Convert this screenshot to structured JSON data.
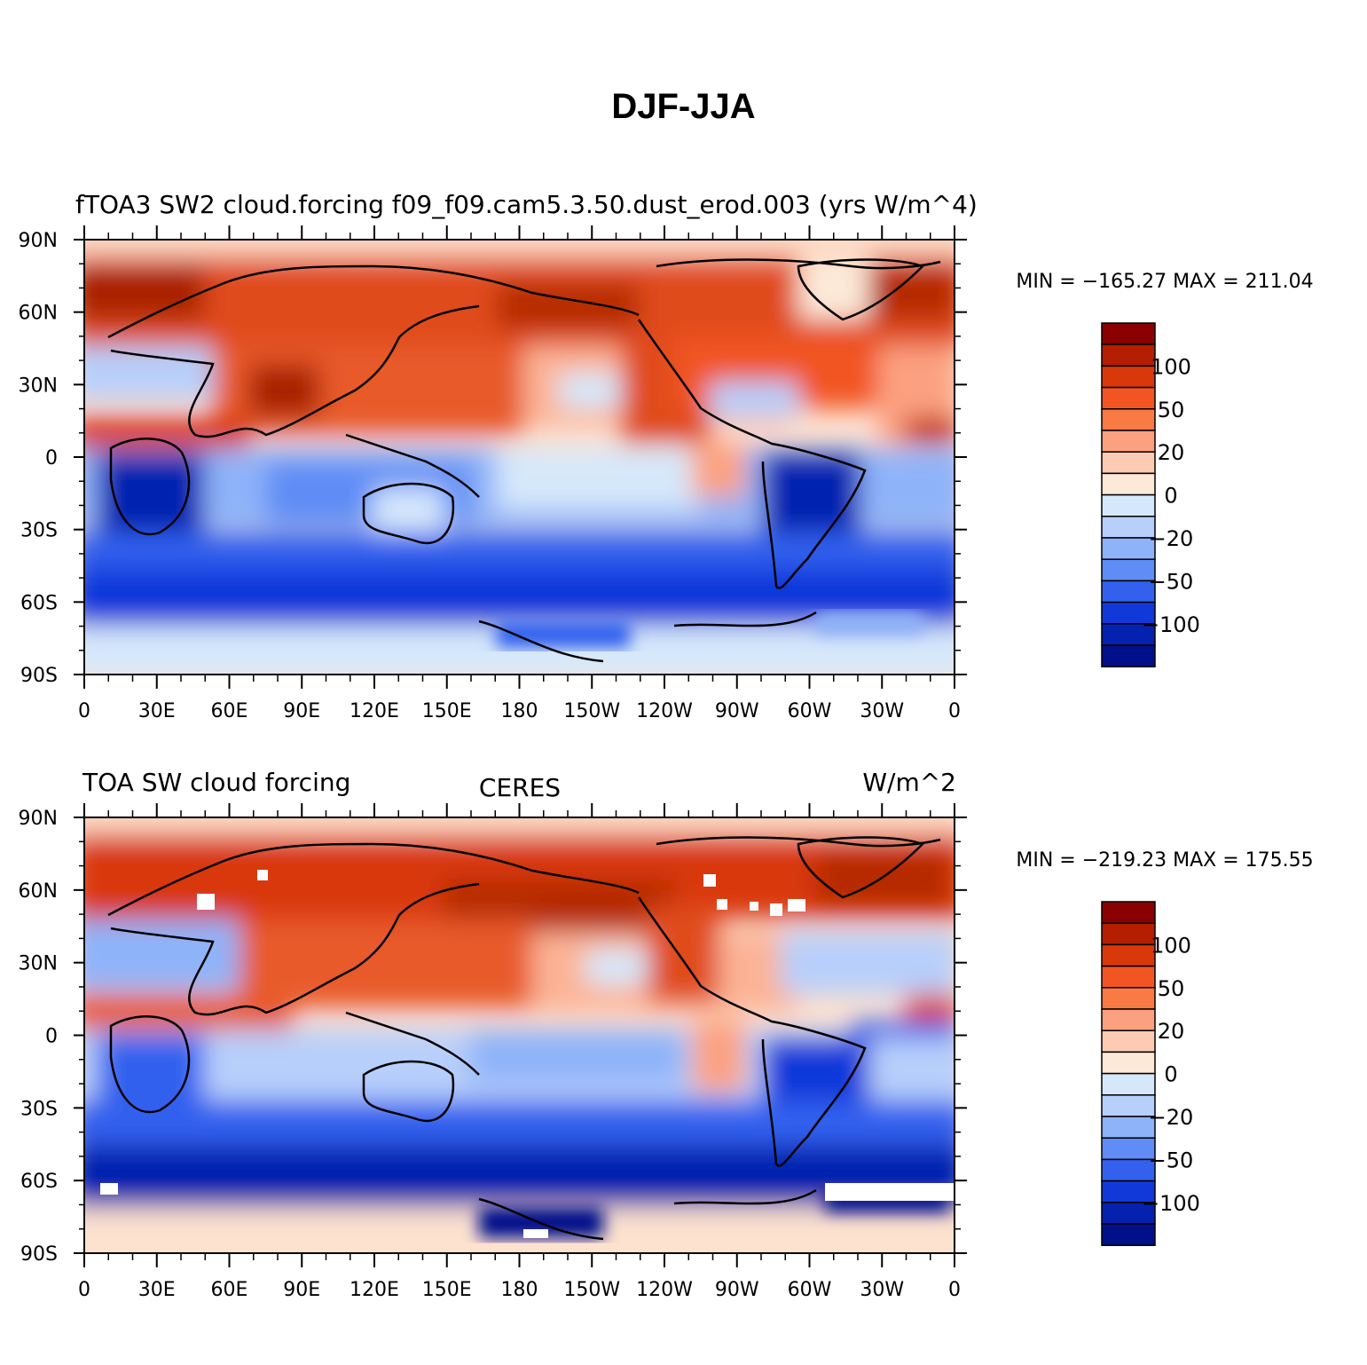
{
  "title": "DJF-JJA",
  "panels": [
    {
      "header_left": "fTOA3 SW2 cloud.forcing f09_f09.cam5.3.50.dust_erod.003 (yrs W/m^4)",
      "header_center": "",
      "header_right": "",
      "stats": "MIN = −165.27  MAX = 211.04"
    },
    {
      "header_left": "TOA SW cloud forcing",
      "header_center": "CERES",
      "header_right": "W/m^2",
      "stats": "MIN = −219.23  MAX = 175.55"
    }
  ],
  "map": {
    "lat_labels": [
      "90N",
      "60N",
      "30N",
      "0",
      "30S",
      "60S",
      "90S"
    ],
    "lon_labels": [
      "0",
      "30E",
      "60E",
      "90E",
      "120E",
      "150E",
      "180",
      "150W",
      "120W",
      "90W",
      "60W",
      "30W",
      "0"
    ]
  },
  "colorbar": {
    "colors": [
      "#8b0000",
      "#b51e00",
      "#d9380b",
      "#f25522",
      "#fa7a45",
      "#fca180",
      "#fdcbb3",
      "#fde9d8",
      "#d5e8fb",
      "#b7cffb",
      "#8fb3f9",
      "#5f8cf5",
      "#3361ee",
      "#1139da",
      "#0521b0",
      "#00108a"
    ],
    "labels": [
      "100",
      "50",
      "20",
      "0",
      "−20",
      "−50",
      "−100"
    ]
  }
}
